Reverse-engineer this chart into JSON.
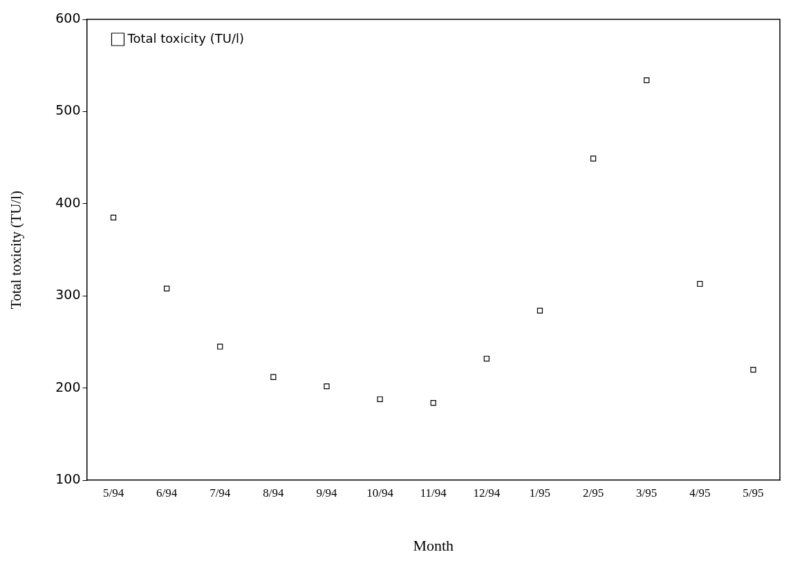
{
  "chart_data": {
    "type": "scatter",
    "xlabel": "Month",
    "ylabel": "Total toxicity (TU/l)",
    "categories": [
      "5/94",
      "6/94",
      "7/94",
      "8/94",
      "9/94",
      "10/94",
      "11/94",
      "12/94",
      "1/95",
      "2/95",
      "3/95",
      "4/95",
      "5/95"
    ],
    "series": [
      {
        "name": "Total toxicity (TU/l)",
        "color": "#000000",
        "values": [
          385,
          308,
          245,
          212,
          202,
          188,
          184,
          232,
          284,
          449,
          534,
          313,
          220
        ]
      }
    ],
    "ylim": [
      100,
      600
    ],
    "yticks": [
      100,
      200,
      300,
      400,
      500,
      600
    ],
    "grid": false,
    "legend": "top left",
    "marker": "square"
  }
}
